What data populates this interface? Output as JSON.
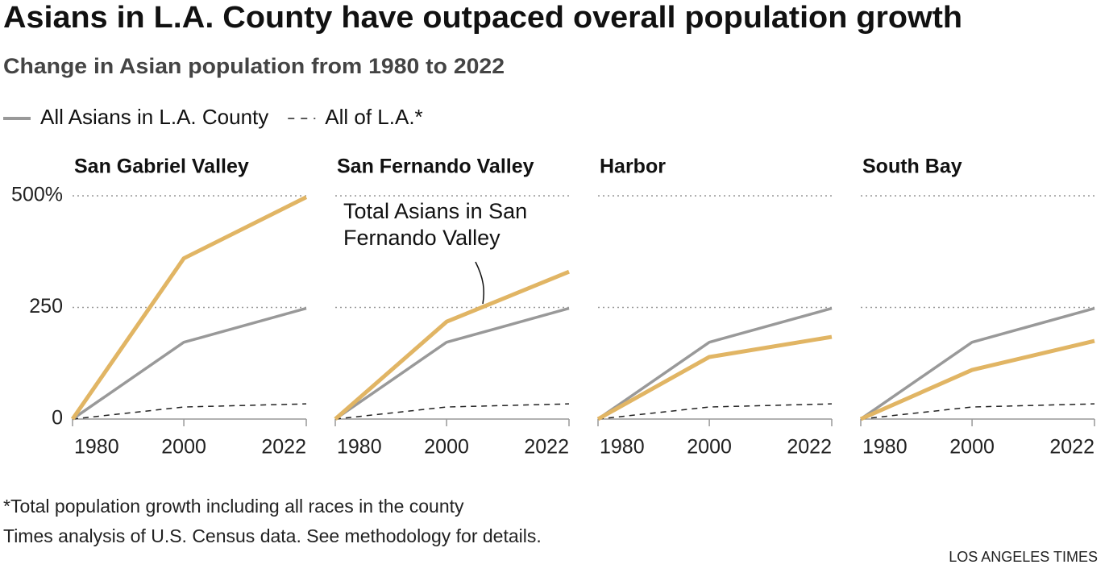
{
  "title": "Asians in L.A. County have outpaced overall population growth",
  "subtitle": "Change in Asian population from 1980 to 2022",
  "chart_data": [
    {
      "type": "line",
      "title": "San Gabriel Valley",
      "x": [
        1980,
        2000,
        2022
      ],
      "xlim": [
        1980,
        2022
      ],
      "xticks": [
        1980,
        2000,
        2022
      ],
      "ylim": [
        0,
        500
      ],
      "yticks": [
        0,
        250,
        {
          "value": 500,
          "label": "500%"
        }
      ],
      "grid": true,
      "series": [
        {
          "color": "#e1b564",
          "values": [
            0,
            360,
            497
          ]
        },
        {
          "name": "All Asians in L.A. County",
          "color": "#999999",
          "values": [
            0,
            172,
            248
          ]
        },
        {
          "name": "All of L.A.*",
          "color": "#222222",
          "dash": true,
          "values": [
            0,
            27,
            34
          ]
        }
      ]
    },
    {
      "type": "line",
      "title": "San Fernando Valley",
      "x": [
        1980,
        2000,
        2022
      ],
      "xlim": [
        1980,
        2022
      ],
      "xticks": [
        1980,
        2000,
        2022
      ],
      "ylim": [
        0,
        500
      ],
      "yticks": [
        0,
        250,
        500
      ],
      "grid": true,
      "annotation": "Total Asians in San Fernando Valley",
      "series": [
        {
          "color": "#e1b564",
          "values": [
            0,
            218,
            330
          ]
        },
        {
          "color": "#999999",
          "values": [
            0,
            172,
            248
          ]
        },
        {
          "color": "#222222",
          "dash": true,
          "values": [
            0,
            27,
            34
          ]
        }
      ]
    },
    {
      "type": "line",
      "title": "Harbor",
      "x": [
        1980,
        2000,
        2022
      ],
      "xlim": [
        1980,
        2022
      ],
      "xticks": [
        1980,
        2000,
        2022
      ],
      "ylim": [
        0,
        500
      ],
      "yticks": [
        0,
        250,
        500
      ],
      "grid": true,
      "series": [
        {
          "color": "#e1b564",
          "values": [
            0,
            139,
            184
          ]
        },
        {
          "color": "#999999",
          "values": [
            0,
            172,
            248
          ]
        },
        {
          "color": "#222222",
          "dash": true,
          "values": [
            0,
            27,
            34
          ]
        }
      ]
    },
    {
      "type": "line",
      "title": "South Bay",
      "x": [
        1980,
        2000,
        2022
      ],
      "xlim": [
        1980,
        2022
      ],
      "xticks": [
        1980,
        2000,
        2022
      ],
      "ylim": [
        0,
        500
      ],
      "yticks": [
        0,
        250,
        500
      ],
      "grid": true,
      "series": [
        {
          "color": "#e1b564",
          "values": [
            0,
            110,
            175
          ]
        },
        {
          "color": "#999999",
          "values": [
            0,
            172,
            248
          ]
        },
        {
          "color": "#222222",
          "dash": true,
          "values": [
            0,
            27,
            34
          ]
        }
      ]
    }
  ],
  "notes": [
    "*Total population growth including all races in the county",
    "Times analysis of U.S. Census data. See methodology for details."
  ],
  "credit": "LOS ANGELES TIMES"
}
